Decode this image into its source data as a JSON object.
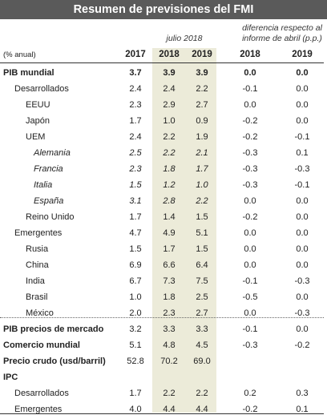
{
  "title": "Resumen de previsiones del FMI",
  "header": {
    "units_label": "(% anual)",
    "july_label": "julio 2018",
    "diff_label_line1": "diferencia respecto al",
    "diff_label_line2": "informe de abril (p.p.)",
    "cols": [
      "2017",
      "2018",
      "2019",
      "2018",
      "2019"
    ]
  },
  "rows": [
    {
      "label": "PIB mundial",
      "indent": 0,
      "bold": true,
      "italic": false,
      "values": [
        "3.7",
        "3.9",
        "3.9",
        "0.0",
        "0.0"
      ]
    },
    {
      "label": "Desarrollados",
      "indent": 1,
      "bold": false,
      "italic": false,
      "values": [
        "2.4",
        "2.4",
        "2.2",
        "-0.1",
        "0.0"
      ]
    },
    {
      "label": "EEUU",
      "indent": 2,
      "bold": false,
      "italic": false,
      "values": [
        "2.3",
        "2.9",
        "2.7",
        "0.0",
        "0.0"
      ]
    },
    {
      "label": "Japón",
      "indent": 2,
      "bold": false,
      "italic": false,
      "values": [
        "1.7",
        "1.0",
        "0.9",
        "-0.2",
        "0.0"
      ]
    },
    {
      "label": "UEM",
      "indent": 2,
      "bold": false,
      "italic": false,
      "values": [
        "2.4",
        "2.2",
        "1.9",
        "-0.2",
        "-0.1"
      ]
    },
    {
      "label": "Alemania",
      "indent": 3,
      "bold": false,
      "italic": true,
      "values": [
        "2.5",
        "2.2",
        "2.1",
        "-0.3",
        "0.1"
      ]
    },
    {
      "label": "Francia",
      "indent": 3,
      "bold": false,
      "italic": true,
      "values": [
        "2.3",
        "1.8",
        "1.7",
        "-0.3",
        "-0.3"
      ]
    },
    {
      "label": "Italia",
      "indent": 3,
      "bold": false,
      "italic": true,
      "values": [
        "1.5",
        "1.2",
        "1.0",
        "-0.3",
        "-0.1"
      ]
    },
    {
      "label": "España",
      "indent": 3,
      "bold": false,
      "italic": true,
      "values": [
        "3.1",
        "2.8",
        "2.2",
        "0.0",
        "0.0"
      ]
    },
    {
      "label": "Reino Unido",
      "indent": 2,
      "bold": false,
      "italic": false,
      "values": [
        "1.7",
        "1.4",
        "1.5",
        "-0.2",
        "0.0"
      ]
    },
    {
      "label": "Emergentes",
      "indent": 1,
      "bold": false,
      "italic": false,
      "values": [
        "4.7",
        "4.9",
        "5.1",
        "0.0",
        "0.0"
      ]
    },
    {
      "label": "Rusia",
      "indent": 2,
      "bold": false,
      "italic": false,
      "values": [
        "1.5",
        "1.7",
        "1.5",
        "0.0",
        "0.0"
      ]
    },
    {
      "label": "China",
      "indent": 2,
      "bold": false,
      "italic": false,
      "values": [
        "6.9",
        "6.6",
        "6.4",
        "0.0",
        "0.0"
      ]
    },
    {
      "label": "India",
      "indent": 2,
      "bold": false,
      "italic": false,
      "values": [
        "6.7",
        "7.3",
        "7.5",
        "-0.1",
        "-0.3"
      ]
    },
    {
      "label": "Brasil",
      "indent": 2,
      "bold": false,
      "italic": false,
      "values": [
        "1.0",
        "1.8",
        "2.5",
        "-0.5",
        "0.0"
      ]
    },
    {
      "label": "México",
      "indent": 2,
      "bold": false,
      "italic": false,
      "values": [
        "2.0",
        "2.3",
        "2.7",
        "0.0",
        "-0.3"
      ]
    },
    {
      "label": "PIB precios de mercado",
      "indent": 0,
      "bold": true,
      "italic": false,
      "values": [
        "3.2",
        "3.3",
        "3.3",
        "-0.1",
        "0.0"
      ]
    },
    {
      "label": "Comercio mundial",
      "indent": 0,
      "bold": true,
      "italic": false,
      "values": [
        "5.1",
        "4.8",
        "4.5",
        "-0.3",
        "-0.2"
      ]
    },
    {
      "label": "Precio crudo (usd/barril)",
      "indent": 0,
      "bold": true,
      "italic": false,
      "values": [
        "52.8",
        "70.2",
        "69.0",
        "",
        ""
      ]
    },
    {
      "label": "IPC",
      "indent": 0,
      "bold": true,
      "italic": false,
      "values": [
        "",
        "",
        "",
        "",
        ""
      ]
    },
    {
      "label": "Desarrollados",
      "indent": 1,
      "bold": false,
      "italic": false,
      "values": [
        "1.7",
        "2.2",
        "2.2",
        "0.2",
        "0.3"
      ]
    },
    {
      "label": "Emergentes",
      "indent": 1,
      "bold": false,
      "italic": false,
      "values": [
        "4.0",
        "4.4",
        "4.4",
        "-0.2",
        "0.1"
      ]
    }
  ]
}
